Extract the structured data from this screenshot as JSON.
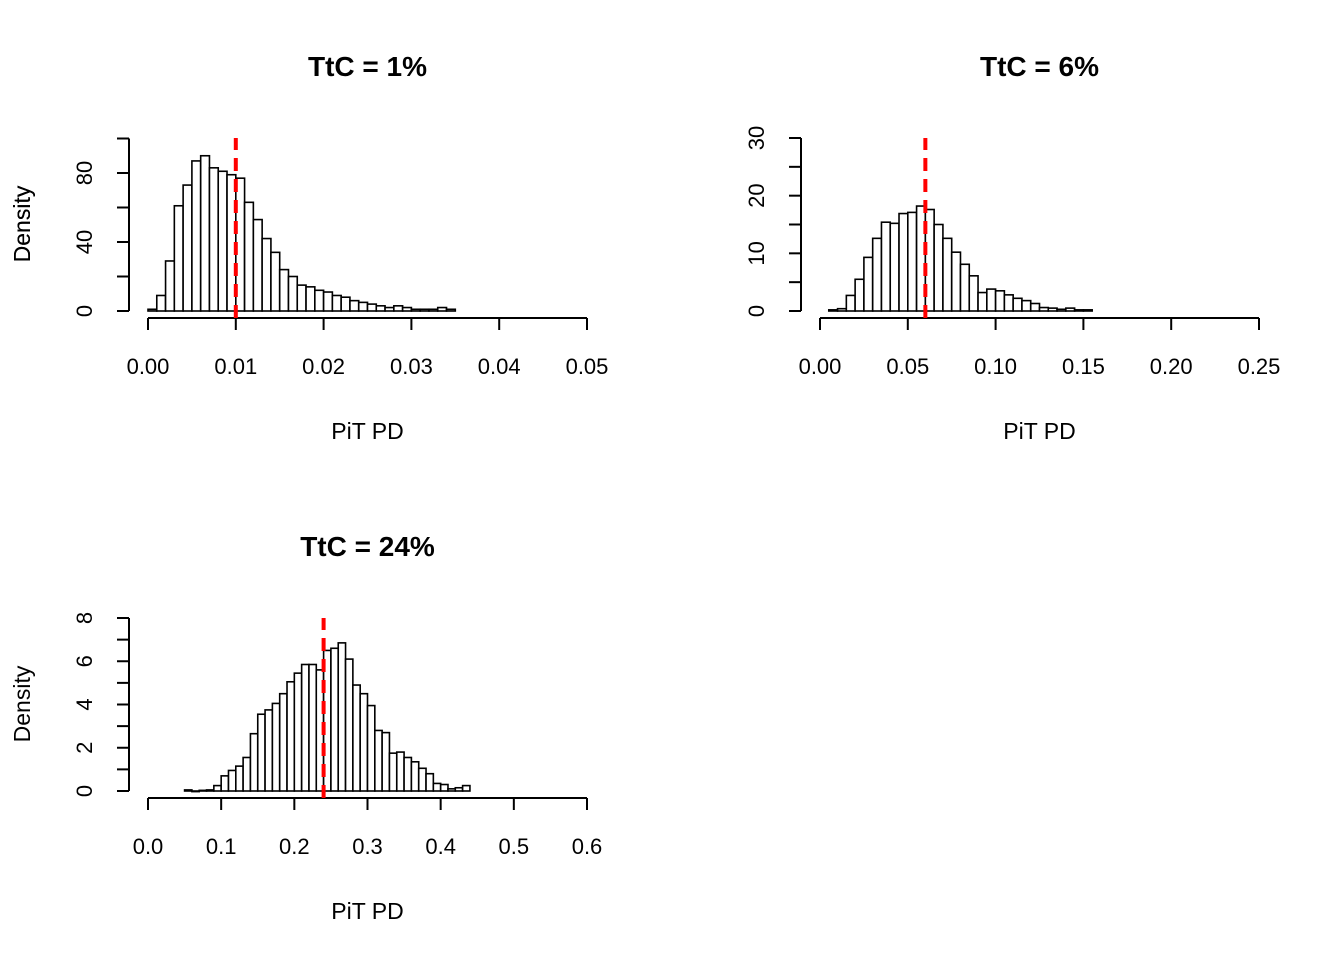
{
  "chart_data": [
    {
      "type": "bar",
      "subtype": "histogram",
      "title": "TtC = 1%",
      "xlabel": "PiT PD",
      "ylabel": "Density",
      "xlim": [
        0,
        0.05
      ],
      "ylim": [
        0,
        100
      ],
      "x_ticks": [
        "0.00",
        "0.01",
        "0.02",
        "0.03",
        "0.04",
        "0.05"
      ],
      "y_ticks": [
        "0",
        "40",
        "80"
      ],
      "bin_start": 0,
      "bin_width": 0.001,
      "values": [
        1,
        9,
        29,
        61,
        73,
        87,
        90,
        83,
        81,
        79,
        77,
        63,
        53,
        42,
        34,
        24,
        20,
        15,
        14,
        12,
        11,
        9,
        8,
        6,
        5,
        4,
        3,
        2,
        3,
        2,
        1,
        1,
        1,
        2,
        1
      ],
      "reference_line": {
        "x": 0.01,
        "color": "#ff0000",
        "style": "dashed"
      },
      "grid": false,
      "legend": "none"
    },
    {
      "type": "bar",
      "subtype": "histogram",
      "title": "TtC = 6%",
      "xlabel": "PiT PD",
      "ylabel": "Density",
      "xlim": [
        0,
        0.25
      ],
      "ylim": [
        0,
        30
      ],
      "x_ticks": [
        "0.00",
        "0.05",
        "0.10",
        "0.15",
        "0.20",
        "0.25"
      ],
      "y_ticks": [
        "0",
        "10",
        "20",
        "30"
      ],
      "bin_start": 0.005,
      "bin_width": 0.005,
      "values": [
        0.2,
        0.4,
        2.7,
        5.5,
        9.3,
        12.6,
        15.4,
        15.2,
        16.9,
        17.1,
        18.2,
        17.6,
        15.0,
        12.6,
        10.2,
        8.1,
        6.1,
        3.2,
        3.8,
        3.5,
        2.8,
        2.2,
        1.8,
        1.3,
        0.6,
        0.5,
        0.3,
        0.5,
        0.2,
        0.2
      ],
      "reference_line": {
        "x": 0.06,
        "color": "#ff0000",
        "style": "dashed"
      },
      "grid": false,
      "legend": "none"
    },
    {
      "type": "bar",
      "subtype": "histogram",
      "title": "TtC = 24%",
      "xlabel": "PiT PD",
      "ylabel": "Density",
      "xlim": [
        0,
        0.6
      ],
      "ylim": [
        0,
        8
      ],
      "x_ticks": [
        "0.0",
        "0.1",
        "0.2",
        "0.3",
        "0.4",
        "0.5",
        "0.6"
      ],
      "y_ticks": [
        "0",
        "2",
        "4",
        "6",
        "8"
      ],
      "bin_start": 0.05,
      "bin_width": 0.01,
      "values": [
        0.05,
        0,
        0.03,
        0.05,
        0.25,
        0.7,
        0.95,
        1.15,
        1.55,
        2.65,
        3.55,
        3.75,
        4.05,
        4.5,
        5.05,
        5.45,
        5.85,
        5.85,
        5.6,
        6.5,
        6.6,
        6.85,
        6.1,
        4.9,
        4.5,
        3.95,
        2.8,
        2.7,
        1.75,
        1.8,
        1.55,
        1.35,
        1.05,
        0.8,
        0.35,
        0.3,
        0.1,
        0.15,
        0.25
      ],
      "reference_line": {
        "x": 0.24,
        "color": "#ff0000",
        "style": "dashed"
      },
      "grid": false,
      "legend": "none"
    }
  ]
}
